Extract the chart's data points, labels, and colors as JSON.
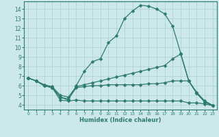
{
  "xlabel": "Humidex (Indice chaleur)",
  "bg_color": "#cce8ea",
  "grid_color": "#aacfcf",
  "line_color": "#2d7a6e",
  "xlim": [
    -0.5,
    23.5
  ],
  "ylim": [
    3.5,
    14.8
  ],
  "xticks": [
    0,
    1,
    2,
    3,
    4,
    5,
    6,
    7,
    8,
    9,
    10,
    11,
    12,
    13,
    14,
    15,
    16,
    17,
    18,
    19,
    20,
    21,
    22,
    23
  ],
  "yticks": [
    4,
    5,
    6,
    7,
    8,
    9,
    10,
    11,
    12,
    13,
    14
  ],
  "curve1_x": [
    0,
    1,
    2,
    3,
    4,
    5,
    6,
    7,
    8,
    9,
    10,
    11,
    12,
    13,
    14,
    15,
    16,
    17,
    18,
    19,
    20,
    21,
    22,
    23
  ],
  "curve1_y": [
    6.8,
    6.5,
    6.0,
    5.8,
    4.8,
    4.5,
    6.0,
    7.5,
    8.5,
    8.8,
    10.5,
    11.2,
    13.0,
    13.8,
    14.4,
    14.3,
    14.0,
    13.5,
    12.2,
    9.4,
    6.5,
    5.2,
    4.3,
    3.9
  ],
  "curve2_x": [
    0,
    1,
    2,
    3,
    4,
    5,
    6,
    7,
    8,
    9,
    10,
    11,
    12,
    13,
    14,
    15,
    16,
    17,
    18,
    19,
    20,
    21,
    22,
    23
  ],
  "curve2_y": [
    6.8,
    6.5,
    6.1,
    5.9,
    5.0,
    4.8,
    5.9,
    6.1,
    6.3,
    6.5,
    6.7,
    6.9,
    7.1,
    7.3,
    7.5,
    7.7,
    7.9,
    8.1,
    8.8,
    9.3,
    6.5,
    5.3,
    4.4,
    3.95
  ],
  "curve3_x": [
    0,
    1,
    2,
    3,
    4,
    5,
    6,
    7,
    8,
    9,
    10,
    11,
    12,
    13,
    14,
    15,
    16,
    17,
    18,
    19,
    20,
    21,
    22,
    23
  ],
  "curve3_y": [
    6.8,
    6.5,
    6.0,
    5.8,
    4.8,
    4.6,
    5.8,
    5.9,
    6.0,
    6.0,
    6.1,
    6.1,
    6.1,
    6.1,
    6.1,
    6.2,
    6.2,
    6.3,
    6.5,
    6.5,
    6.5,
    5.2,
    4.3,
    3.9
  ],
  "curve4_x": [
    0,
    1,
    2,
    3,
    4,
    5,
    6,
    7,
    8,
    9,
    10,
    11,
    12,
    13,
    14,
    15,
    16,
    17,
    18,
    19,
    20,
    21,
    22,
    23
  ],
  "curve4_y": [
    6.8,
    6.5,
    6.0,
    5.8,
    4.5,
    4.4,
    4.5,
    4.4,
    4.4,
    4.4,
    4.4,
    4.4,
    4.4,
    4.4,
    4.4,
    4.4,
    4.4,
    4.4,
    4.4,
    4.4,
    4.2,
    4.2,
    4.1,
    3.9
  ]
}
